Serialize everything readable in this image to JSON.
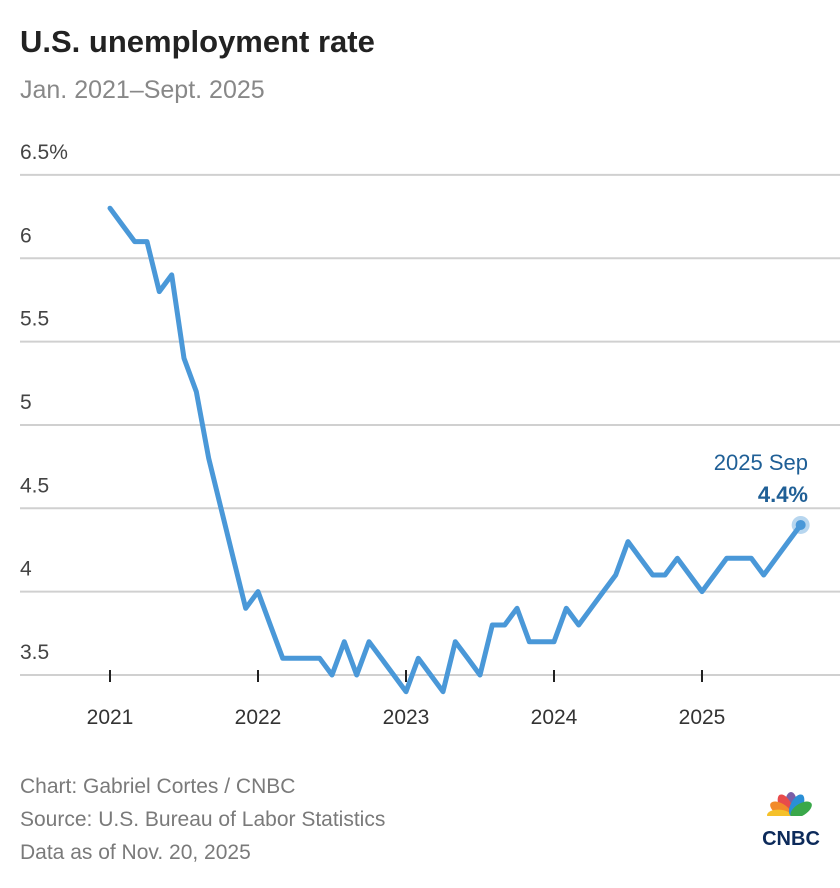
{
  "chart_data": {
    "type": "line",
    "title": "U.S. unemployment rate",
    "subtitle": "Jan. 2021–Sept. 2025",
    "xlabel": "",
    "ylabel": "",
    "ylim": [
      3.5,
      6.5
    ],
    "y_ticks": [
      "6.5%",
      "6",
      "5.5",
      "5",
      "4.5",
      "4",
      "3.5"
    ],
    "y_tick_values": [
      6.5,
      6,
      5.5,
      5,
      4.5,
      4,
      3.5
    ],
    "x_ticks": [
      "2021",
      "2022",
      "2023",
      "2024",
      "2025"
    ],
    "grid": true,
    "line_color": "#4a98d8",
    "start": "2021-01",
    "values": [
      6.3,
      6.2,
      6.1,
      6.1,
      5.8,
      5.9,
      5.4,
      5.2,
      4.8,
      4.5,
      4.2,
      3.9,
      4.0,
      3.8,
      3.6,
      3.6,
      3.6,
      3.6,
      3.5,
      3.7,
      3.5,
      3.7,
      3.6,
      3.5,
      3.4,
      3.6,
      3.5,
      3.4,
      3.7,
      3.6,
      3.5,
      3.8,
      3.8,
      3.9,
      3.7,
      3.7,
      3.7,
      3.9,
      3.8,
      3.9,
      4.0,
      4.1,
      4.3,
      4.2,
      4.1,
      4.1,
      4.2,
      4.1,
      4.0,
      4.1,
      4.2,
      4.2,
      4.2,
      4.1,
      4.2,
      4.3,
      4.4
    ],
    "annotation": {
      "label": "2025 Sep",
      "value": "4.4%",
      "color": "#1f5f96"
    }
  },
  "footer": {
    "credit": "Chart: Gabriel Cortes / CNBC",
    "source": "Source: U.S. Bureau of Labor Statistics",
    "asof": "Data as of Nov. 20, 2025"
  },
  "logo": {
    "text": "CNBC"
  }
}
